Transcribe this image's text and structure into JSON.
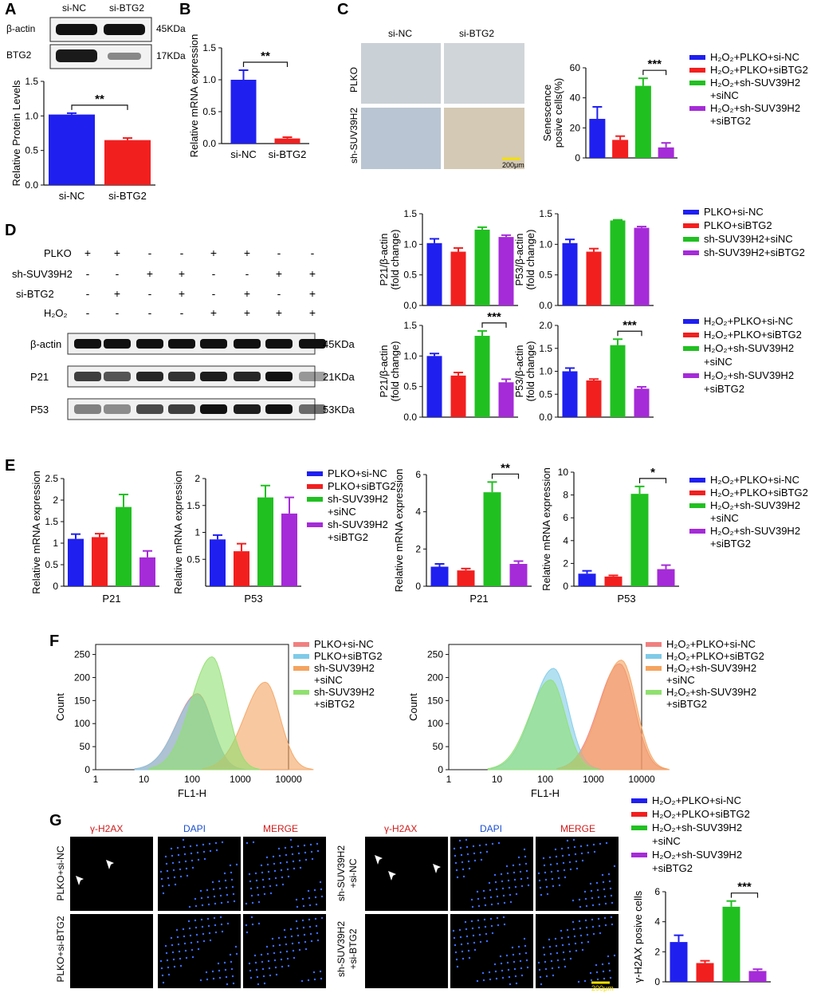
{
  "colors": {
    "blue": "#1f1ff0",
    "red": "#f21f1f",
    "green": "#21c021",
    "purple": "#a52bd8",
    "axis": "#111111"
  },
  "panel_letters": [
    "A",
    "B",
    "C",
    "D",
    "E",
    "F",
    "G"
  ],
  "panelA": {
    "blot_cols": [
      "si-NC",
      "si-BTG2"
    ],
    "blot_rows": [
      "β-actin",
      "BTG2"
    ],
    "blot_kda": [
      "45KDa",
      "17KDa"
    ]
  },
  "panelC_images": {
    "cols": [
      "si-NC",
      "si-BTG2"
    ],
    "rows": [
      "PLKO",
      "sh-SUV39H2"
    ],
    "scale": "200μm"
  },
  "panelD": {
    "rows": [
      {
        "label": "PLKO",
        "marks": [
          "+",
          "+",
          "-",
          "-",
          "+",
          "+",
          "-",
          "-"
        ]
      },
      {
        "label": "sh-SUV39H2",
        "marks": [
          "-",
          "-",
          "+",
          "+",
          "-",
          "-",
          "+",
          "+"
        ]
      },
      {
        "label": "si-BTG2",
        "marks": [
          "-",
          "+",
          "-",
          "+",
          "-",
          "+",
          "-",
          "+"
        ]
      },
      {
        "label": "H₂O₂",
        "marks": [
          "-",
          "-",
          "-",
          "-",
          "+",
          "+",
          "+",
          "+"
        ]
      }
    ],
    "bands": [
      {
        "label": "β-actin",
        "kda": "45KDa"
      },
      {
        "label": "P21",
        "kda": "21KDa"
      },
      {
        "label": "P53",
        "kda": "53KDa"
      }
    ]
  },
  "legends": {
    "c": [
      "H₂O₂+PLKO+si-NC",
      "H₂O₂+PLKO+siBTG2",
      "H₂O₂+sh-SUV39H2",
      "+siNC",
      "H₂O₂+sh-SUV39H2",
      "+siBTG2"
    ],
    "d1": [
      "PLKO+si-NC",
      "PLKO+siBTG2",
      "sh-SUV39H2+siNC",
      "sh-SUV39H2+siBTG2"
    ],
    "d2": [
      "H₂O₂+PLKO+si-NC",
      "H₂O₂+PLKO+siBTG2",
      "H₂O₂+sh-SUV39H2",
      "+siNC",
      "H₂O₂+sh-SUV39H2",
      "+siBTG2"
    ],
    "e1": [
      "PLKO+si-NC",
      "PLKO+siBTG2",
      "sh-SUV39H2",
      "+siNC",
      "sh-SUV39H2",
      "+siBTG2"
    ],
    "e2": [
      "H₂O₂+PLKO+si-NC",
      "H₂O₂+PLKO+siBTG2",
      "H₂O₂+sh-SUV39H2",
      "+siNC",
      "H₂O₂+sh-SUV39H2",
      "+siBTG2"
    ],
    "f1": [
      "PLKO+si-NC",
      "PLKO+siBTG2",
      "sh-SUV39H2",
      "+siNC",
      "sh-SUV39H2",
      "+siBTG2"
    ],
    "f2": [
      "H₂O₂+PLKO+si-NC",
      "H₂O₂+PLKO+siBTG2",
      "H₂O₂+sh-SUV39H2",
      "+siNC",
      "H₂O₂+sh-SUV39H2",
      "+siBTG2"
    ],
    "g": [
      "H₂O₂+PLKO+si-NC",
      "H₂O₂+PLKO+siBTG2",
      "H₂O₂+sh-SUV39H2",
      "+siNC",
      "H₂O₂+sh-SUV39H2",
      "+siBTG2"
    ]
  },
  "panelG_images": {
    "cols_left": [
      "γ-H2AX",
      "DAPI",
      "MERGE"
    ],
    "rows_left": [
      "PLKO+si-NC",
      "PLKO+si-BTG2"
    ],
    "rows_right": [
      "sh-SUV39H2",
      "+si-NC",
      "sh-SUV39H2",
      "+si-BTG2"
    ],
    "scale": "200μm"
  },
  "chart_data": [
    {
      "id": "A",
      "type": "bar",
      "title": "",
      "ylabel": "Relative Protein Levels",
      "categories": [
        "si-NC",
        "si-BTG2"
      ],
      "values": [
        1.02,
        0.65
      ],
      "errors": [
        0.02,
        0.03
      ],
      "ylim": [
        0,
        1.5
      ],
      "yticks": [
        0.0,
        0.5,
        1.0,
        1.5
      ],
      "significance": "**"
    },
    {
      "id": "B",
      "type": "bar",
      "ylabel": "Relative mRNA expression",
      "categories": [
        "si-NC",
        "si-BTG2"
      ],
      "values": [
        1.0,
        0.08
      ],
      "errors": [
        0.15,
        0.02
      ],
      "ylim": [
        0,
        1.5
      ],
      "yticks": [
        0.0,
        0.5,
        1.0,
        1.5
      ],
      "significance": "**"
    },
    {
      "id": "C",
      "type": "bar",
      "ylabel": "Senescence posive cells(%)",
      "categories": [
        "",
        "",
        "",
        ""
      ],
      "values": [
        26,
        12,
        48,
        7
      ],
      "errors": [
        8,
        2.5,
        5,
        3
      ],
      "ylim": [
        0,
        60
      ],
      "yticks": [
        0,
        20,
        40,
        60
      ],
      "significance": "***"
    },
    {
      "id": "D1",
      "type": "bar",
      "ylabel": "P21/β-actin (fold change)",
      "values": [
        1.02,
        0.88,
        1.24,
        1.12
      ],
      "errors": [
        0.07,
        0.06,
        0.04,
        0.03
      ],
      "ylim": [
        0,
        1.5
      ],
      "yticks": [
        0.0,
        0.5,
        1.0,
        1.5
      ],
      "significance": ""
    },
    {
      "id": "D2",
      "type": "bar",
      "ylabel": "P53/β-actin (fold change)",
      "values": [
        1.02,
        0.88,
        1.39,
        1.27
      ],
      "errors": [
        0.06,
        0.05,
        0.01,
        0.02
      ],
      "ylim": [
        0,
        1.5
      ],
      "yticks": [
        0.0,
        0.5,
        1.0,
        1.5
      ],
      "significance": ""
    },
    {
      "id": "D3",
      "type": "bar",
      "ylabel": "P21/β-actin (fold change)",
      "values": [
        1.0,
        0.68,
        1.33,
        0.57
      ],
      "errors": [
        0.04,
        0.05,
        0.08,
        0.05
      ],
      "ylim": [
        0,
        1.5
      ],
      "yticks": [
        0.0,
        0.5,
        1.0,
        1.5
      ],
      "significance": "***"
    },
    {
      "id": "D4",
      "type": "bar",
      "ylabel": "P53/β-actin (fold change)",
      "values": [
        1.0,
        0.8,
        1.57,
        0.62
      ],
      "errors": [
        0.07,
        0.03,
        0.13,
        0.04
      ],
      "ylim": [
        0,
        2.0
      ],
      "yticks": [
        0.0,
        0.5,
        1.0,
        1.5,
        2.0
      ],
      "significance": "***"
    },
    {
      "id": "E1",
      "type": "bar",
      "ylabel": "Relative mRNA expression",
      "xlabel": "P21",
      "values": [
        1.1,
        1.14,
        1.84,
        0.67
      ],
      "errors": [
        0.11,
        0.08,
        0.29,
        0.15
      ],
      "ylim": [
        0,
        2.5
      ],
      "yticks": [
        0.0,
        0.5,
        1.0,
        1.5,
        2.0,
        2.5
      ],
      "significance": ""
    },
    {
      "id": "E2",
      "type": "bar",
      "ylabel": "Relative mRNA expression",
      "xlabel": "P53",
      "values": [
        0.87,
        0.65,
        1.65,
        1.35
      ],
      "errors": [
        0.08,
        0.14,
        0.22,
        0.3
      ],
      "ylim": [
        0,
        2.0
      ],
      "yticks": [
        0.5,
        1.0,
        1.5,
        2.0
      ],
      "significance": ""
    },
    {
      "id": "E3",
      "type": "bar",
      "ylabel": "Relative mRNA expression",
      "xlabel": "P21",
      "values": [
        1.05,
        0.85,
        5.05,
        1.2
      ],
      "errors": [
        0.15,
        0.1,
        0.55,
        0.15
      ],
      "ylim": [
        0,
        6
      ],
      "yticks": [
        0,
        2,
        4,
        6
      ],
      "significance": "**"
    },
    {
      "id": "E4",
      "type": "bar",
      "ylabel": "Relative mRNA expression",
      "xlabel": "P53",
      "values": [
        1.1,
        0.85,
        8.1,
        1.5
      ],
      "errors": [
        0.25,
        0.1,
        0.65,
        0.35
      ],
      "ylim": [
        0,
        10
      ],
      "yticks": [
        0,
        2,
        4,
        6,
        8,
        10
      ],
      "significance": "*"
    },
    {
      "id": "F1",
      "type": "area",
      "ylabel": "Count",
      "xlabel": "FL1-H",
      "xticks": [
        "1",
        "10",
        "100",
        "1000",
        "10000"
      ],
      "yticks": [
        0,
        50,
        100,
        150,
        200,
        250
      ],
      "ylim": [
        0,
        250
      ],
      "series": [
        {
          "name": "PLKO+si-NC",
          "peak_x": 130,
          "peak_count": 165
        },
        {
          "name": "PLKO+siBTG2",
          "peak_x": 130,
          "peak_count": 162
        },
        {
          "name": "sh-SUV39H2 +siNC",
          "peak_x": 3300,
          "peak_count": 190
        },
        {
          "name": "sh-SUV39H2 +siBTG2",
          "peak_x": 260,
          "peak_count": 245
        }
      ]
    },
    {
      "id": "F2",
      "type": "area",
      "ylabel": "Count",
      "xlabel": "FL1-H",
      "xticks": [
        "1",
        "10",
        "100",
        "1000",
        "10000"
      ],
      "yticks": [
        0,
        50,
        100,
        150,
        200,
        250
      ],
      "ylim": [
        0,
        250
      ],
      "series": [
        {
          "name": "H₂O₂+PLKO+si-NC",
          "peak_x": 3500,
          "peak_count": 230
        },
        {
          "name": "H₂O₂+PLKO+siBTG2",
          "peak_x": 150,
          "peak_count": 220
        },
        {
          "name": "H₂O₂+sh-SUV39H2 +siNC",
          "peak_x": 3800,
          "peak_count": 238
        },
        {
          "name": "H₂O₂+sh-SUV39H2 +siBTG2",
          "peak_x": 130,
          "peak_count": 195
        }
      ]
    },
    {
      "id": "G",
      "type": "bar",
      "ylabel": "γ-H2AX posive cells",
      "values": [
        2.65,
        1.25,
        5.0,
        0.72
      ],
      "errors": [
        0.45,
        0.15,
        0.38,
        0.12
      ],
      "ylim": [
        0,
        6
      ],
      "yticks": [
        0,
        2,
        4,
        6
      ],
      "significance": "***"
    }
  ]
}
